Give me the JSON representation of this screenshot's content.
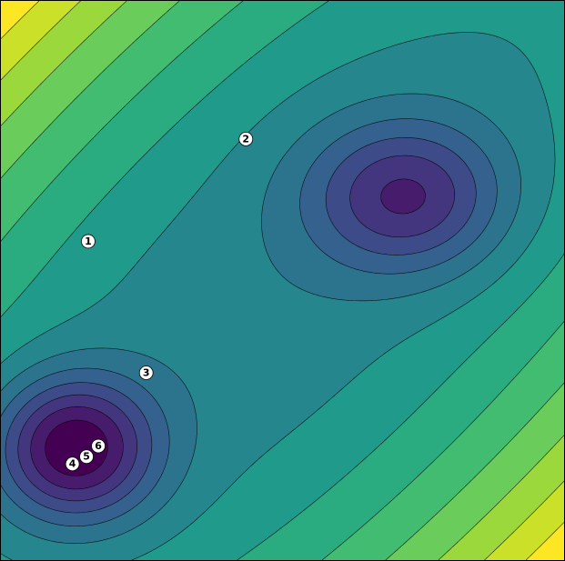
{
  "chart_data": {
    "type": "contour",
    "title": "",
    "xlabel": "",
    "ylabel": "",
    "grid": false,
    "colormap": [
      "#440154",
      "#482878",
      "#3e4989",
      "#31688e",
      "#26828e",
      "#1f9e89",
      "#35b779",
      "#6ece58",
      "#b5de2b",
      "#fde725"
    ],
    "num_levels": 14,
    "points": [
      {
        "label": "1",
        "x": 0.155,
        "y": 0.57
      },
      {
        "label": "2",
        "x": 0.435,
        "y": 0.753
      },
      {
        "label": "3",
        "x": 0.258,
        "y": 0.335
      },
      {
        "label": "4",
        "x": 0.127,
        "y": 0.172
      },
      {
        "label": "5",
        "x": 0.152,
        "y": 0.185
      },
      {
        "label": "6",
        "x": 0.173,
        "y": 0.204
      }
    ]
  }
}
